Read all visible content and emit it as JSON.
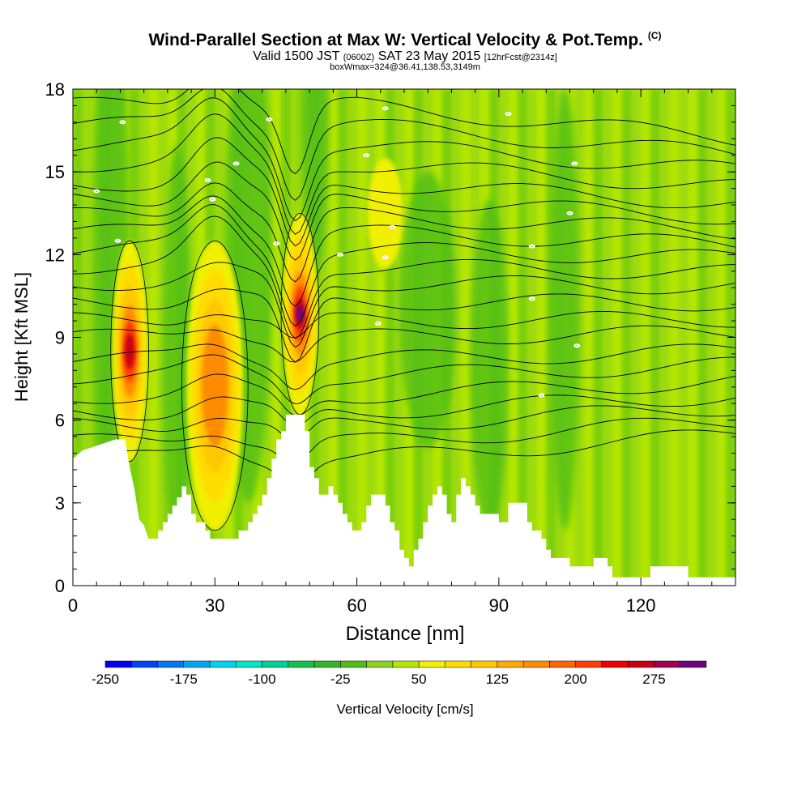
{
  "title": {
    "main": "Wind-Parallel Section at Max W: Vertical Velocity & Pot.Temp.",
    "copyright": "(C)",
    "valid_prefix": "Valid 1500 JST",
    "valid_utc": "(0600Z)",
    "valid_date": "SAT 23 May 2015",
    "forecast": "[12hrFcst@2314z]",
    "box_info": "boxWmax=324@36.41,138.53,3149m"
  },
  "chart_data": {
    "type": "heatmap",
    "xlabel": "Distance [nm]",
    "ylabel": "Height [Kft MSL]",
    "xlim": [
      0,
      140
    ],
    "ylim": [
      0,
      18
    ],
    "x_ticks": [
      0,
      30,
      60,
      90,
      120
    ],
    "y_ticks": [
      0,
      3,
      6,
      9,
      12,
      15,
      18
    ],
    "colorbar": {
      "label": "Vertical Velocity [cm/s]",
      "tick_labels": [
        -250,
        -175,
        -100,
        -25,
        50,
        125,
        200,
        275
      ],
      "levels": [
        -250,
        -225,
        -200,
        -175,
        -150,
        -125,
        -100,
        -75,
        -50,
        -25,
        0,
        25,
        50,
        75,
        100,
        125,
        150,
        175,
        200,
        225,
        250,
        275,
        300
      ],
      "colors": [
        "#0000f0",
        "#0046f0",
        "#0078f0",
        "#00a8f0",
        "#00d2f0",
        "#00e6c8",
        "#00d296",
        "#14c050",
        "#32b428",
        "#50be14",
        "#8cd21e",
        "#b4e600",
        "#f0f000",
        "#ffdc00",
        "#ffc800",
        "#ffaa00",
        "#ff8c00",
        "#ff6400",
        "#ff3c00",
        "#f00000",
        "#c80014",
        "#a00050",
        "#6e0082"
      ]
    },
    "updrafts": [
      {
        "x": 12,
        "base_kft": 4.5,
        "top_kft": 12.5,
        "peak_cms": 250
      },
      {
        "x": 30,
        "base_kft": 2.0,
        "top_kft": 12.5,
        "peak_cms": 175
      },
      {
        "x": 48,
        "base_kft": 6.2,
        "top_kft": 13.5,
        "peak_cms": 324
      },
      {
        "x": 66,
        "base_kft": 11.5,
        "top_kft": 15.5,
        "peak_cms": 60
      }
    ],
    "terrain_kft": [
      [
        0,
        4.6
      ],
      [
        2,
        4.9
      ],
      [
        9,
        5.3
      ],
      [
        11,
        5.3
      ],
      [
        12,
        4.3
      ],
      [
        13,
        3.5
      ],
      [
        14,
        2.4
      ],
      [
        15,
        2.2
      ],
      [
        16,
        1.7
      ],
      [
        18,
        1.7
      ],
      [
        18,
        2.0
      ],
      [
        19,
        2.0
      ],
      [
        19,
        2.3
      ],
      [
        20,
        2.3
      ],
      [
        20,
        2.6
      ],
      [
        21,
        2.6
      ],
      [
        21,
        2.9
      ],
      [
        22,
        2.9
      ],
      [
        22,
        3.2
      ],
      [
        23,
        3.2
      ],
      [
        23,
        3.6
      ],
      [
        24,
        3.6
      ],
      [
        24,
        3.3
      ],
      [
        25,
        3.3
      ],
      [
        25,
        2.6
      ],
      [
        26,
        2.6
      ],
      [
        26,
        2.3
      ],
      [
        28,
        2.3
      ],
      [
        28,
        2.0
      ],
      [
        29,
        2.0
      ],
      [
        29,
        1.7
      ],
      [
        35,
        1.7
      ],
      [
        35,
        2.0
      ],
      [
        37,
        2.0
      ],
      [
        37,
        2.3
      ],
      [
        38,
        2.3
      ],
      [
        38,
        2.6
      ],
      [
        39,
        2.6
      ],
      [
        39,
        2.9
      ],
      [
        40,
        2.9
      ],
      [
        40,
        3.3
      ],
      [
        41,
        3.3
      ],
      [
        41,
        3.9
      ],
      [
        42,
        3.9
      ],
      [
        42,
        4.6
      ],
      [
        43,
        4.6
      ],
      [
        43,
        5.3
      ],
      [
        44,
        5.3
      ],
      [
        44,
        5.6
      ],
      [
        45,
        5.6
      ],
      [
        45,
        6.2
      ],
      [
        49,
        6.2
      ],
      [
        49,
        5.6
      ],
      [
        50,
        5.6
      ],
      [
        50,
        4.3
      ],
      [
        51,
        4.3
      ],
      [
        51,
        3.9
      ],
      [
        52,
        3.9
      ],
      [
        52,
        3.3
      ],
      [
        54,
        3.3
      ],
      [
        54,
        3.6
      ],
      [
        55,
        3.6
      ],
      [
        55,
        3.3
      ],
      [
        56,
        3.3
      ],
      [
        56,
        3.0
      ],
      [
        57,
        3.0
      ],
      [
        57,
        2.6
      ],
      [
        58,
        2.6
      ],
      [
        58,
        2.3
      ],
      [
        59,
        2.3
      ],
      [
        59,
        2.0
      ],
      [
        61,
        2.0
      ],
      [
        61,
        2.3
      ],
      [
        62,
        2.3
      ],
      [
        62,
        2.9
      ],
      [
        63,
        2.9
      ],
      [
        63,
        3.3
      ],
      [
        66,
        3.3
      ],
      [
        66,
        2.9
      ],
      [
        67,
        2.9
      ],
      [
        67,
        2.3
      ],
      [
        68,
        2.3
      ],
      [
        68,
        2.0
      ],
      [
        69,
        2.0
      ],
      [
        69,
        1.3
      ],
      [
        70,
        1.3
      ],
      [
        70,
        1.0
      ],
      [
        71,
        1.0
      ],
      [
        71,
        0.7
      ],
      [
        72,
        0.7
      ],
      [
        72,
        1.3
      ],
      [
        73,
        1.3
      ],
      [
        73,
        1.7
      ],
      [
        74,
        1.7
      ],
      [
        74,
        2.3
      ],
      [
        75,
        2.3
      ],
      [
        75,
        2.9
      ],
      [
        76,
        2.9
      ],
      [
        76,
        3.3
      ],
      [
        77,
        3.3
      ],
      [
        77,
        3.6
      ],
      [
        78,
        3.6
      ],
      [
        78,
        3.3
      ],
      [
        79,
        3.3
      ],
      [
        79,
        2.6
      ],
      [
        80,
        2.6
      ],
      [
        80,
        2.3
      ],
      [
        81,
        2.3
      ],
      [
        81,
        3.3
      ],
      [
        82,
        3.3
      ],
      [
        82,
        3.9
      ],
      [
        83,
        3.9
      ],
      [
        83,
        3.6
      ],
      [
        84,
        3.6
      ],
      [
        84,
        3.3
      ],
      [
        85,
        3.3
      ],
      [
        85,
        2.9
      ],
      [
        86,
        2.9
      ],
      [
        86,
        2.6
      ],
      [
        90,
        2.6
      ],
      [
        90,
        2.3
      ],
      [
        92,
        2.3
      ],
      [
        92,
        3.0
      ],
      [
        96,
        3.0
      ],
      [
        96,
        2.3
      ],
      [
        97,
        2.3
      ],
      [
        97,
        2.0
      ],
      [
        99,
        2.0
      ],
      [
        99,
        1.7
      ],
      [
        100,
        1.7
      ],
      [
        100,
        1.3
      ],
      [
        101,
        1.3
      ],
      [
        101,
        1.0
      ],
      [
        105,
        1.0
      ],
      [
        105,
        0.7
      ],
      [
        110,
        0.7
      ],
      [
        110,
        1.0
      ],
      [
        113,
        1.0
      ],
      [
        113,
        0.7
      ],
      [
        114,
        0.7
      ],
      [
        114,
        0.3
      ],
      [
        122,
        0.3
      ],
      [
        122,
        0.7
      ],
      [
        130,
        0.7
      ],
      [
        130,
        0.3
      ],
      [
        140,
        0.3
      ]
    ],
    "isentrope_labels": [
      {
        "x": 10.5,
        "y": 16.8,
        "text": "-"
      },
      {
        "x": 5.0,
        "y": 14.3,
        "text": "-"
      },
      {
        "x": 9.5,
        "y": 12.5,
        "text": "-"
      },
      {
        "x": 28.5,
        "y": 14.7,
        "text": "-"
      },
      {
        "x": 29.5,
        "y": 14.0,
        "text": "-"
      },
      {
        "x": 34.5,
        "y": 15.3,
        "text": "-"
      },
      {
        "x": 41.5,
        "y": 16.9,
        "text": "-"
      },
      {
        "x": 43.0,
        "y": 12.4,
        "text": "-"
      },
      {
        "x": 56.5,
        "y": 12.0,
        "text": "-"
      },
      {
        "x": 62.0,
        "y": 15.6,
        "text": "-"
      },
      {
        "x": 64.5,
        "y": 9.5,
        "text": "-"
      },
      {
        "x": 66.0,
        "y": 17.3,
        "text": "-"
      },
      {
        "x": 66.0,
        "y": 11.9,
        "text": "-"
      },
      {
        "x": 67.5,
        "y": 13.0,
        "text": "-"
      },
      {
        "x": 92.0,
        "y": 17.1,
        "text": "-"
      },
      {
        "x": 97.0,
        "y": 12.3,
        "text": "-"
      },
      {
        "x": 97.0,
        "y": 10.4,
        "text": "-"
      },
      {
        "x": 99.0,
        "y": 6.9,
        "text": "-"
      },
      {
        "x": 106.0,
        "y": 15.3,
        "text": "-"
      },
      {
        "x": 105.0,
        "y": 13.5,
        "text": "-"
      },
      {
        "x": 106.5,
        "y": 8.7,
        "text": "-"
      }
    ]
  }
}
